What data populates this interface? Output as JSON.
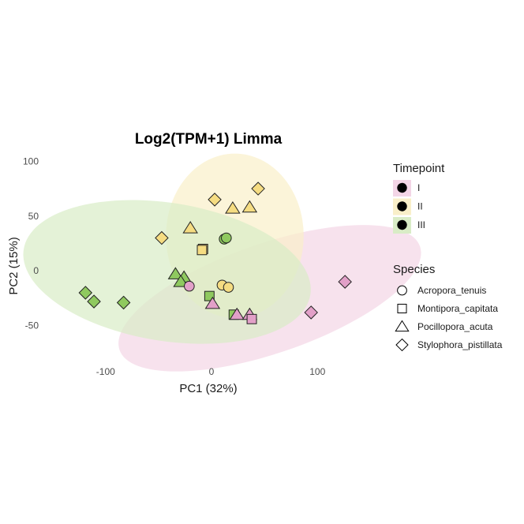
{
  "chart_data": {
    "type": "scatter",
    "title": "Log2(TPM+1) Limma",
    "xlabel": "PC1 (32%)",
    "ylabel": "PC2 (15%)",
    "xlim": [
      -152,
      146
    ],
    "ylim": [
      -87,
      106
    ],
    "xticks": [
      -100,
      0,
      100
    ],
    "yticks": [
      -50,
      0,
      50,
      100
    ],
    "xtick_labels": [
      "-100",
      "0",
      "100"
    ],
    "ytick_labels": [
      "-50",
      "0",
      "50",
      "100"
    ],
    "grid": false,
    "legend_position": "right",
    "color_legend": {
      "title": "Timepoint",
      "items": [
        {
          "label": "I",
          "color": "#e2a0c8",
          "fill": "#f3d5e6"
        },
        {
          "label": "II",
          "color": "#f5dc82",
          "fill": "#f9efc9"
        },
        {
          "label": "III",
          "color": "#8fc95f",
          "fill": "#d9ecc6"
        }
      ]
    },
    "shape_legend": {
      "title": "Species",
      "items": [
        {
          "label": "Acropora_tenuis",
          "shape": "circle"
        },
        {
          "label": "Montipora_capitata",
          "shape": "square"
        },
        {
          "label": "Pocillopora_acuta",
          "shape": "triangle"
        },
        {
          "label": "Stylophora_pistillata",
          "shape": "diamond"
        }
      ]
    },
    "ellipses": [
      {
        "group": "I",
        "center": [
          55,
          -25
        ],
        "axes": [
          150,
          50
        ],
        "angle_deg": -19
      },
      {
        "group": "II",
        "center": [
          22,
          32
        ],
        "axes": [
          65,
          75
        ],
        "angle_deg": 0
      },
      {
        "group": "III",
        "center": [
          -42,
          -1
        ],
        "axes": [
          137,
          63
        ],
        "angle_deg": 9
      }
    ],
    "points": [
      {
        "x": 44,
        "y": 75,
        "group": "II",
        "species": "diamond"
      },
      {
        "x": 3,
        "y": 65,
        "group": "II",
        "species": "diamond"
      },
      {
        "x": -47,
        "y": 30,
        "group": "II",
        "species": "diamond"
      },
      {
        "x": 20,
        "y": 57,
        "group": "II",
        "species": "triangle"
      },
      {
        "x": 36,
        "y": 58,
        "group": "II",
        "species": "triangle"
      },
      {
        "x": -20,
        "y": 39,
        "group": "II",
        "species": "triangle"
      },
      {
        "x": -8,
        "y": 20,
        "group": "II",
        "species": "square"
      },
      {
        "x": -9,
        "y": 19,
        "group": "II",
        "species": "square"
      },
      {
        "x": 10,
        "y": -13,
        "group": "II",
        "species": "circle"
      },
      {
        "x": 16,
        "y": -15,
        "group": "II",
        "species": "circle"
      },
      {
        "x": 12,
        "y": 29,
        "group": "III",
        "species": "circle"
      },
      {
        "x": 14,
        "y": 30,
        "group": "III",
        "species": "circle"
      },
      {
        "x": -119,
        "y": -20,
        "group": "III",
        "species": "diamond"
      },
      {
        "x": -111,
        "y": -28,
        "group": "III",
        "species": "diamond"
      },
      {
        "x": -83,
        "y": -29,
        "group": "III",
        "species": "diamond"
      },
      {
        "x": -34,
        "y": -3,
        "group": "III",
        "species": "triangle"
      },
      {
        "x": -26,
        "y": -6,
        "group": "III",
        "species": "triangle"
      },
      {
        "x": -29,
        "y": -10,
        "group": "III",
        "species": "triangle"
      },
      {
        "x": -2,
        "y": -23,
        "group": "III",
        "species": "square"
      },
      {
        "x": 21,
        "y": -40,
        "group": "III",
        "species": "square"
      },
      {
        "x": -21,
        "y": -14,
        "group": "I",
        "species": "circle"
      },
      {
        "x": 1,
        "y": -30,
        "group": "I",
        "species": "triangle"
      },
      {
        "x": 24,
        "y": -40,
        "group": "I",
        "species": "triangle"
      },
      {
        "x": 36,
        "y": -40,
        "group": "I",
        "species": "triangle"
      },
      {
        "x": 38,
        "y": -44,
        "group": "I",
        "species": "square"
      },
      {
        "x": 94,
        "y": -38,
        "group": "I",
        "species": "diamond"
      },
      {
        "x": 126,
        "y": -10,
        "group": "I",
        "species": "diamond"
      }
    ]
  }
}
